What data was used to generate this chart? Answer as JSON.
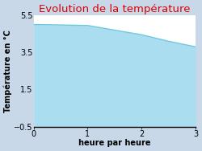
{
  "title": "Evolution de la température",
  "title_color": "#dd0000",
  "xlabel": "heure par heure",
  "ylabel": "Température en °C",
  "xlim": [
    0,
    3
  ],
  "ylim": [
    -0.5,
    5.5
  ],
  "xticks": [
    0,
    1,
    2,
    3
  ],
  "yticks": [
    -0.5,
    1.5,
    3.5,
    5.5
  ],
  "x": [
    0,
    0.1,
    1.0,
    1.5,
    2.0,
    2.5,
    3.0
  ],
  "y": [
    5.0,
    5.0,
    4.95,
    4.7,
    4.45,
    4.1,
    3.8
  ],
  "line_color": "#6cc8dc",
  "fill_color": "#aaddf0",
  "fill_alpha": 1.0,
  "plot_bg_color": "#ffffff",
  "figure_bg_color": "#c8d8e8",
  "line_width": 1.0,
  "title_fontsize": 9.5,
  "label_fontsize": 7,
  "tick_fontsize": 7
}
